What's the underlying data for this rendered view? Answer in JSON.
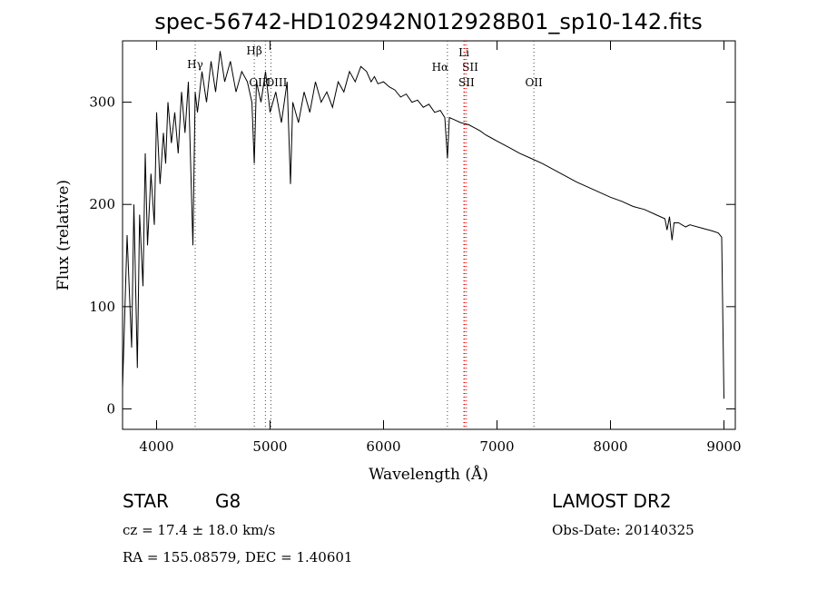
{
  "chart_data": {
    "type": "line",
    "title": "spec-56742-HD102942N012928B01_sp10-142.fits",
    "xlabel": "Wavelength (Å)",
    "ylabel": "Flux (relative)",
    "xlim": [
      3700,
      9100
    ],
    "ylim": [
      -20,
      360
    ],
    "xticks": [
      4000,
      5000,
      6000,
      7000,
      8000,
      9000
    ],
    "yticks": [
      0,
      100,
      200,
      300
    ],
    "grid": false,
    "x": [
      3700,
      3740,
      3780,
      3800,
      3830,
      3850,
      3880,
      3900,
      3920,
      3950,
      3980,
      4000,
      4030,
      4060,
      4080,
      4100,
      4130,
      4160,
      4190,
      4220,
      4250,
      4280,
      4300,
      4320,
      4340,
      4360,
      4400,
      4440,
      4480,
      4520,
      4560,
      4600,
      4650,
      4700,
      4750,
      4800,
      4840,
      4861,
      4880,
      4920,
      4960,
      5000,
      5050,
      5100,
      5150,
      5180,
      5200,
      5250,
      5300,
      5350,
      5400,
      5450,
      5500,
      5550,
      5600,
      5650,
      5700,
      5750,
      5800,
      5850,
      5890,
      5920,
      5950,
      6000,
      6050,
      6100,
      6150,
      6200,
      6250,
      6300,
      6350,
      6400,
      6450,
      6500,
      6540,
      6563,
      6580,
      6620,
      6680,
      6750,
      6800,
      6850,
      6900,
      6950,
      7000,
      7100,
      7200,
      7300,
      7400,
      7500,
      7600,
      7700,
      7800,
      7900,
      8000,
      8100,
      8200,
      8300,
      8400,
      8480,
      8498,
      8520,
      8542,
      8560,
      8600,
      8662,
      8700,
      8800,
      8900,
      8950,
      8980,
      9000
    ],
    "y": [
      20,
      170,
      60,
      200,
      40,
      190,
      120,
      250,
      160,
      230,
      180,
      290,
      220,
      270,
      240,
      300,
      260,
      290,
      250,
      310,
      270,
      320,
      240,
      160,
      310,
      290,
      330,
      300,
      340,
      310,
      350,
      320,
      340,
      310,
      330,
      320,
      300,
      240,
      320,
      300,
      330,
      290,
      310,
      280,
      320,
      220,
      300,
      280,
      310,
      290,
      320,
      300,
      310,
      295,
      320,
      310,
      330,
      320,
      335,
      330,
      320,
      325,
      318,
      320,
      315,
      312,
      305,
      308,
      300,
      302,
      295,
      298,
      290,
      292,
      285,
      245,
      285,
      283,
      280,
      278,
      275,
      272,
      268,
      265,
      262,
      256,
      250,
      245,
      240,
      234,
      228,
      222,
      217,
      212,
      207,
      203,
      198,
      195,
      190,
      186,
      175,
      188,
      165,
      182,
      182,
      178,
      180,
      177,
      174,
      172,
      168,
      10
    ],
    "lines": [
      {
        "name": "Hγ",
        "x": 4340
      },
      {
        "name": "Hβ",
        "x": 4861
      },
      {
        "name": "OIII",
        "x": 4959
      },
      {
        "name": "OIII",
        "x": 5007
      },
      {
        "name": "Hα",
        "x": 6563
      },
      {
        "name": "Li",
        "x": 6708
      },
      {
        "name": "SII",
        "x": 6716
      },
      {
        "name": "SII",
        "x": 6731
      },
      {
        "name": "OII",
        "x": 7325
      }
    ]
  },
  "info": {
    "class_label": "STAR",
    "subclass_label": "G8",
    "survey": "LAMOST DR2",
    "cz_text": "cz = 17.4 ± 18.0 km/s",
    "obs_date": "Obs-Date: 20140325",
    "radec_text": "RA = 155.08579, DEC =   1.40601"
  }
}
